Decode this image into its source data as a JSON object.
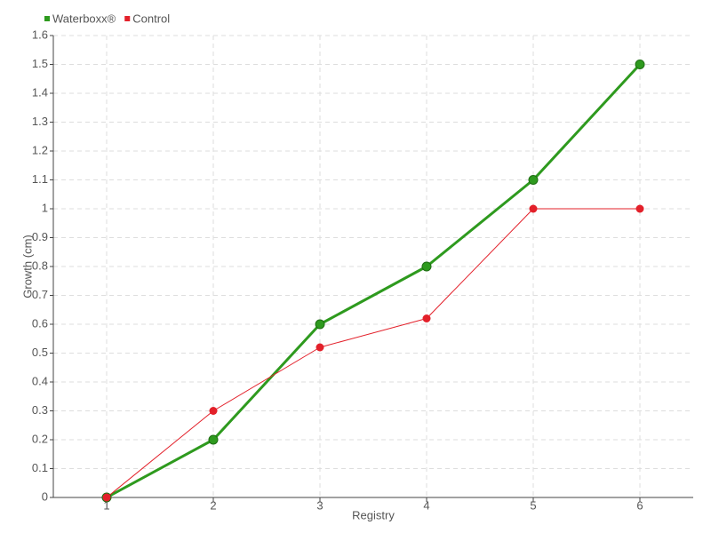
{
  "chart_data": {
    "type": "line",
    "x_label": "Registry",
    "y_label": "Growth (cm)",
    "categories": [
      "1",
      "2",
      "3",
      "4",
      "5",
      "6"
    ],
    "series": [
      {
        "name": "Waterboxx®",
        "color": "#2e9a1e",
        "values": [
          0,
          0.2,
          0.6,
          0.8,
          1.1,
          1.5
        ]
      },
      {
        "name": "Control",
        "color": "#e3202a",
        "values": [
          0,
          0.3,
          0.52,
          0.62,
          1.0,
          1.0
        ]
      }
    ],
    "ylim": [
      0,
      1.6
    ],
    "yticks": [
      0,
      0.1,
      0.2,
      0.3,
      0.4,
      0.5,
      0.6,
      0.7,
      0.8,
      0.9,
      1,
      1.1,
      1.2,
      1.3,
      1.4,
      1.5,
      1.6
    ],
    "grid": true,
    "legend": "top-left"
  }
}
